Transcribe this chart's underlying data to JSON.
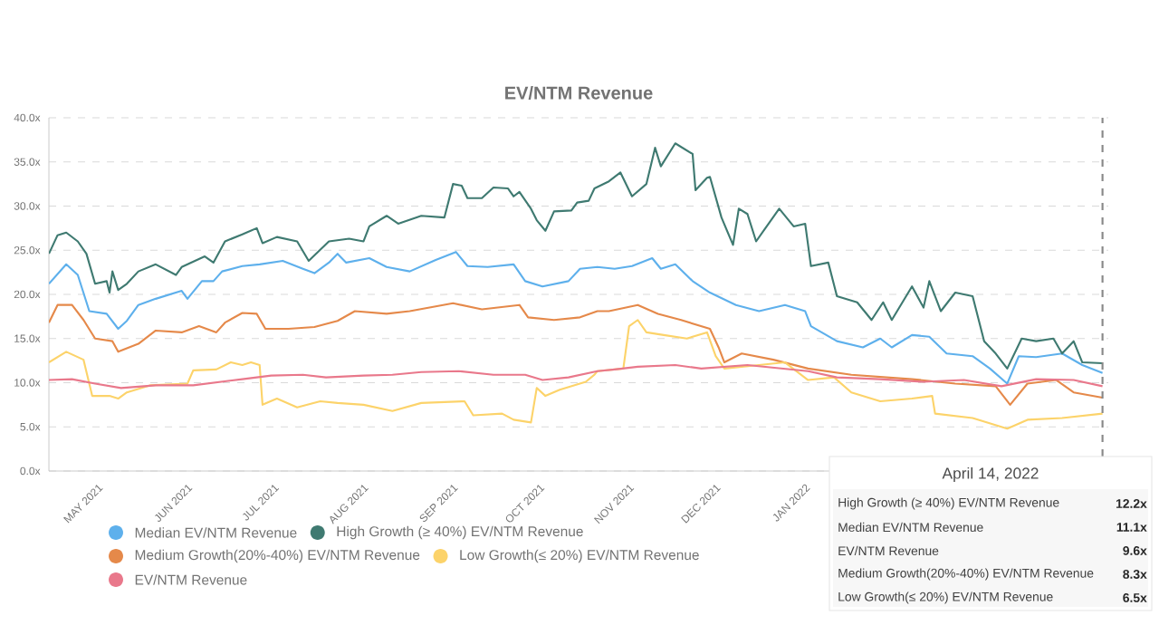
{
  "chart_data": {
    "type": "line",
    "title": "EV/NTM Revenue",
    "xlim": [
      "2021-04-14",
      "2022-04-16"
    ],
    "ylim": [
      0,
      40
    ],
    "xticks": [
      {
        "value": "2021-05-01",
        "label": "MAY 2021"
      },
      {
        "value": "2021-06-01",
        "label": "JUN 2021"
      },
      {
        "value": "2021-07-01",
        "label": "JUL 2021"
      },
      {
        "value": "2021-08-01",
        "label": "AUG 2021"
      },
      {
        "value": "2021-09-01",
        "label": "SEP 2021"
      },
      {
        "value": "2021-10-01",
        "label": "OCT 2021"
      },
      {
        "value": "2021-11-01",
        "label": "NOV 2021"
      },
      {
        "value": "2021-12-01",
        "label": "DEC 2021"
      },
      {
        "value": "2022-01-01",
        "label": "JAN 2022"
      }
    ],
    "yticks": [
      {
        "value": 0,
        "label": "0.0x"
      },
      {
        "value": 5,
        "label": "5.0x"
      },
      {
        "value": 10,
        "label": "10.0x"
      },
      {
        "value": 15,
        "label": "15.0x"
      },
      {
        "value": 20,
        "label": "20.0x"
      },
      {
        "value": 25,
        "label": "25.0x"
      },
      {
        "value": 30,
        "label": "30.0x"
      },
      {
        "value": 35,
        "label": "35.0x"
      },
      {
        "value": 40,
        "label": "40.0x"
      }
    ],
    "grid": "y",
    "legend": "bottom",
    "marker": "none",
    "line_style": "solid",
    "ref_lines": [
      {
        "axis": "x",
        "value": "2022-04-14",
        "line_style": "dashed",
        "color": "#888888"
      }
    ],
    "annotations": [
      "April 14, 2022",
      "High Growth (≥ 40%) EV/NTM Revenue",
      "12.2x",
      "Median EV/NTM Revenue",
      "11.1x",
      "EV/NTM Revenue",
      "9.6x",
      "Medium Growth(20%-40%) EV/NTM Revenue",
      "8.3x",
      "Low Growth(≤ 20%) EV/NTM Revenue",
      "6.5x"
    ],
    "series": [
      {
        "name": "Median EV/NTM Revenue",
        "color": "#5eb0ec",
        "x": [
          "2021-04-14",
          "2021-04-20",
          "2021-04-24",
          "2021-04-28",
          "2021-05-04",
          "2021-05-08",
          "2021-05-11",
          "2021-05-15",
          "2021-05-21",
          "2021-05-30",
          "2021-06-01",
          "2021-06-06",
          "2021-06-10",
          "2021-06-13",
          "2021-06-20",
          "2021-06-26",
          "2021-07-04",
          "2021-07-11",
          "2021-07-15",
          "2021-07-20",
          "2021-07-23",
          "2021-07-26",
          "2021-08-03",
          "2021-08-09",
          "2021-08-17",
          "2021-08-26",
          "2021-09-02",
          "2021-09-06",
          "2021-09-13",
          "2021-09-22",
          "2021-09-26",
          "2021-10-02",
          "2021-10-11",
          "2021-10-15",
          "2021-10-21",
          "2021-10-27",
          "2021-11-02",
          "2021-11-09",
          "2021-11-12",
          "2021-11-17",
          "2021-11-23",
          "2021-11-29",
          "2021-12-08",
          "2021-12-16",
          "2021-12-25",
          "2022-01-01",
          "2022-01-03",
          "2022-01-12",
          "2022-01-21",
          "2022-01-27",
          "2022-01-31",
          "2022-02-07",
          "2022-02-13",
          "2022-02-19",
          "2022-02-28",
          "2022-03-06",
          "2022-03-12",
          "2022-03-16",
          "2022-03-22",
          "2022-03-31",
          "2022-04-07",
          "2022-04-14"
        ],
        "values": [
          21.2,
          23.4,
          22.2,
          18.1,
          17.8,
          16.1,
          17.0,
          18.8,
          19.5,
          20.4,
          19.5,
          21.5,
          21.5,
          22.6,
          23.2,
          23.4,
          23.8,
          22.9,
          22.4,
          23.6,
          24.6,
          23.6,
          24.1,
          23.1,
          22.6,
          23.9,
          24.8,
          23.2,
          23.1,
          23.4,
          21.5,
          20.9,
          21.5,
          22.9,
          23.1,
          22.9,
          23.2,
          24.1,
          22.9,
          23.4,
          21.5,
          20.2,
          18.8,
          18.1,
          18.8,
          18.1,
          16.4,
          14.7,
          14.0,
          15.0,
          14.0,
          15.4,
          15.2,
          13.3,
          13.0,
          11.6,
          9.9,
          13.0,
          12.9,
          13.3,
          12.0,
          11.1
        ]
      },
      {
        "name": "High Growth (≥ 40%) EV/NTM Revenue",
        "color": "#3f7a71",
        "x": [
          "2021-04-14",
          "2021-04-17",
          "2021-04-20",
          "2021-04-24",
          "2021-04-27",
          "2021-04-30",
          "2021-05-04",
          "2021-05-05",
          "2021-05-06",
          "2021-05-08",
          "2021-05-11",
          "2021-05-15",
          "2021-05-21",
          "2021-05-28",
          "2021-05-30",
          "2021-06-07",
          "2021-06-10",
          "2021-06-14",
          "2021-06-20",
          "2021-06-25",
          "2021-06-27",
          "2021-07-02",
          "2021-07-09",
          "2021-07-13",
          "2021-07-20",
          "2021-07-27",
          "2021-08-01",
          "2021-08-03",
          "2021-08-09",
          "2021-08-13",
          "2021-08-21",
          "2021-08-29",
          "2021-09-01",
          "2021-09-04",
          "2021-09-06",
          "2021-09-11",
          "2021-09-15",
          "2021-09-20",
          "2021-09-22",
          "2021-09-24",
          "2021-09-28",
          "2021-09-30",
          "2021-10-03",
          "2021-10-06",
          "2021-10-12",
          "2021-10-14",
          "2021-10-18",
          "2021-10-20",
          "2021-10-25",
          "2021-10-29",
          "2021-11-02",
          "2021-11-07",
          "2021-11-10",
          "2021-11-12",
          "2021-11-17",
          "2021-11-23",
          "2021-11-24",
          "2021-11-28",
          "2021-11-29",
          "2021-12-03",
          "2021-12-07",
          "2021-12-09",
          "2021-12-12",
          "2021-12-15",
          "2021-12-18",
          "2021-12-23",
          "2021-12-28",
          "2022-01-01",
          "2022-01-03",
          "2022-01-09",
          "2022-01-12",
          "2022-01-19",
          "2022-01-24",
          "2022-01-28",
          "2022-01-31",
          "2022-02-07",
          "2022-02-11",
          "2022-02-13",
          "2022-02-17",
          "2022-02-22",
          "2022-02-28",
          "2022-03-04",
          "2022-03-08",
          "2022-03-12",
          "2022-03-17",
          "2022-03-22",
          "2022-03-28",
          "2022-03-31",
          "2022-04-04",
          "2022-04-07",
          "2022-04-14"
        ],
        "values": [
          24.6,
          26.7,
          27.0,
          26.0,
          24.6,
          21.2,
          21.5,
          20.2,
          22.6,
          20.5,
          21.2,
          22.6,
          23.4,
          22.2,
          23.1,
          24.3,
          23.6,
          26.0,
          26.8,
          27.5,
          25.8,
          26.5,
          26.0,
          23.8,
          26.0,
          26.3,
          26.0,
          27.7,
          28.9,
          28.0,
          28.9,
          28.7,
          32.5,
          32.3,
          30.9,
          30.9,
          32.1,
          32.0,
          31.1,
          31.6,
          29.7,
          28.4,
          27.2,
          29.4,
          29.5,
          30.4,
          30.6,
          32.0,
          32.8,
          33.8,
          31.1,
          32.5,
          36.6,
          34.5,
          37.1,
          35.9,
          31.8,
          33.2,
          33.3,
          28.7,
          25.6,
          29.7,
          29.1,
          26.0,
          27.4,
          29.7,
          27.7,
          28.0,
          23.2,
          23.6,
          19.8,
          19.1,
          17.1,
          19.1,
          17.1,
          20.9,
          18.5,
          21.5,
          18.1,
          20.2,
          19.8,
          14.7,
          13.3,
          11.6,
          15.0,
          14.7,
          15.0,
          13.3,
          14.7,
          12.3,
          12.2
        ]
      },
      {
        "name": "Medium Growth(20%-40%) EV/NTM Revenue",
        "color": "#e5894a",
        "x": [
          "2021-04-14",
          "2021-04-17",
          "2021-04-22",
          "2021-04-26",
          "2021-04-30",
          "2021-05-06",
          "2021-05-08",
          "2021-05-15",
          "2021-05-21",
          "2021-05-30",
          "2021-06-05",
          "2021-06-11",
          "2021-06-14",
          "2021-06-20",
          "2021-06-25",
          "2021-06-28",
          "2021-07-06",
          "2021-07-15",
          "2021-07-23",
          "2021-07-29",
          "2021-08-09",
          "2021-08-17",
          "2021-09-01",
          "2021-09-11",
          "2021-09-24",
          "2021-09-27",
          "2021-10-06",
          "2021-10-15",
          "2021-10-21",
          "2021-10-25",
          "2021-11-04",
          "2021-11-11",
          "2021-11-19",
          "2021-11-29",
          "2021-12-02",
          "2021-12-04",
          "2021-12-10",
          "2021-12-21",
          "2022-01-02",
          "2022-01-17",
          "2022-02-07",
          "2022-02-22",
          "2022-03-08",
          "2022-03-13",
          "2022-03-19",
          "2022-03-29",
          "2022-04-04",
          "2022-04-14"
        ],
        "values": [
          16.8,
          18.8,
          18.8,
          17.1,
          15.0,
          14.7,
          13.5,
          14.4,
          15.9,
          15.7,
          16.4,
          15.7,
          16.8,
          17.9,
          17.8,
          16.1,
          16.1,
          16.3,
          17.0,
          18.1,
          17.8,
          18.1,
          19.0,
          18.3,
          18.8,
          17.4,
          17.1,
          17.4,
          18.1,
          18.1,
          18.8,
          17.8,
          17.1,
          16.1,
          14.0,
          12.3,
          13.3,
          12.6,
          11.6,
          10.9,
          10.4,
          9.9,
          9.6,
          7.5,
          9.9,
          10.3,
          8.9,
          8.3
        ]
      },
      {
        "name": "Low Growth(≤ 20%) EV/NTM Revenue",
        "color": "#fcd36a",
        "x": [
          "2021-04-14",
          "2021-04-20",
          "2021-04-26",
          "2021-04-29",
          "2021-05-05",
          "2021-05-08",
          "2021-05-11",
          "2021-05-19",
          "2021-06-01",
          "2021-06-03",
          "2021-06-11",
          "2021-06-16",
          "2021-06-20",
          "2021-06-23",
          "2021-06-26",
          "2021-06-27",
          "2021-07-02",
          "2021-07-09",
          "2021-07-17",
          "2021-07-23",
          "2021-08-01",
          "2021-08-11",
          "2021-08-21",
          "2021-09-05",
          "2021-09-08",
          "2021-09-18",
          "2021-09-22",
          "2021-09-28",
          "2021-09-30",
          "2021-10-03",
          "2021-10-08",
          "2021-10-17",
          "2021-10-20",
          "2021-10-21",
          "2021-10-30",
          "2021-11-01",
          "2021-11-04",
          "2021-11-07",
          "2021-11-13",
          "2021-11-21",
          "2021-11-28",
          "2021-12-01",
          "2021-12-04",
          "2021-12-16",
          "2021-12-25",
          "2022-01-02",
          "2022-01-11",
          "2022-01-17",
          "2022-01-27",
          "2022-02-07",
          "2022-02-14",
          "2022-02-15",
          "2022-02-28",
          "2022-03-12",
          "2022-03-19",
          "2022-03-31",
          "2022-04-14"
        ],
        "values": [
          12.3,
          13.5,
          12.6,
          8.5,
          8.5,
          8.2,
          8.9,
          9.7,
          9.9,
          11.4,
          11.5,
          12.3,
          12.0,
          12.3,
          12.0,
          7.5,
          8.2,
          7.2,
          7.9,
          7.7,
          7.5,
          6.8,
          7.7,
          7.9,
          6.3,
          6.5,
          5.8,
          5.5,
          9.4,
          8.5,
          9.2,
          10.1,
          10.9,
          11.3,
          11.6,
          16.4,
          17.1,
          15.7,
          15.4,
          15.0,
          15.7,
          13.0,
          11.6,
          12.0,
          12.3,
          10.3,
          10.6,
          8.9,
          7.9,
          8.2,
          8.5,
          6.5,
          6.0,
          4.8,
          5.8,
          6.0,
          6.5
        ]
      },
      {
        "name": "EV/NTM Revenue",
        "color": "#e9788b",
        "x": [
          "2021-04-14",
          "2021-04-22",
          "2021-04-30",
          "2021-05-09",
          "2021-05-21",
          "2021-06-03",
          "2021-06-20",
          "2021-06-30",
          "2021-07-11",
          "2021-07-19",
          "2021-08-01",
          "2021-08-11",
          "2021-08-21",
          "2021-09-03",
          "2021-09-15",
          "2021-09-26",
          "2021-10-02",
          "2021-10-11",
          "2021-10-21",
          "2021-10-27",
          "2021-11-04",
          "2021-11-17",
          "2021-11-26",
          "2021-12-12",
          "2022-01-02",
          "2022-01-12",
          "2022-01-27",
          "2022-02-11",
          "2022-02-25",
          "2022-03-10",
          "2022-03-22",
          "2022-04-04",
          "2022-04-14"
        ],
        "values": [
          10.3,
          10.4,
          9.9,
          9.4,
          9.7,
          9.7,
          10.4,
          10.8,
          10.9,
          10.6,
          10.8,
          10.9,
          11.2,
          11.3,
          10.9,
          10.9,
          10.3,
          10.6,
          11.3,
          11.5,
          11.8,
          12.0,
          11.6,
          12.0,
          11.3,
          10.6,
          10.4,
          10.1,
          10.3,
          9.6,
          10.4,
          10.3,
          9.6
        ]
      }
    ]
  }
}
